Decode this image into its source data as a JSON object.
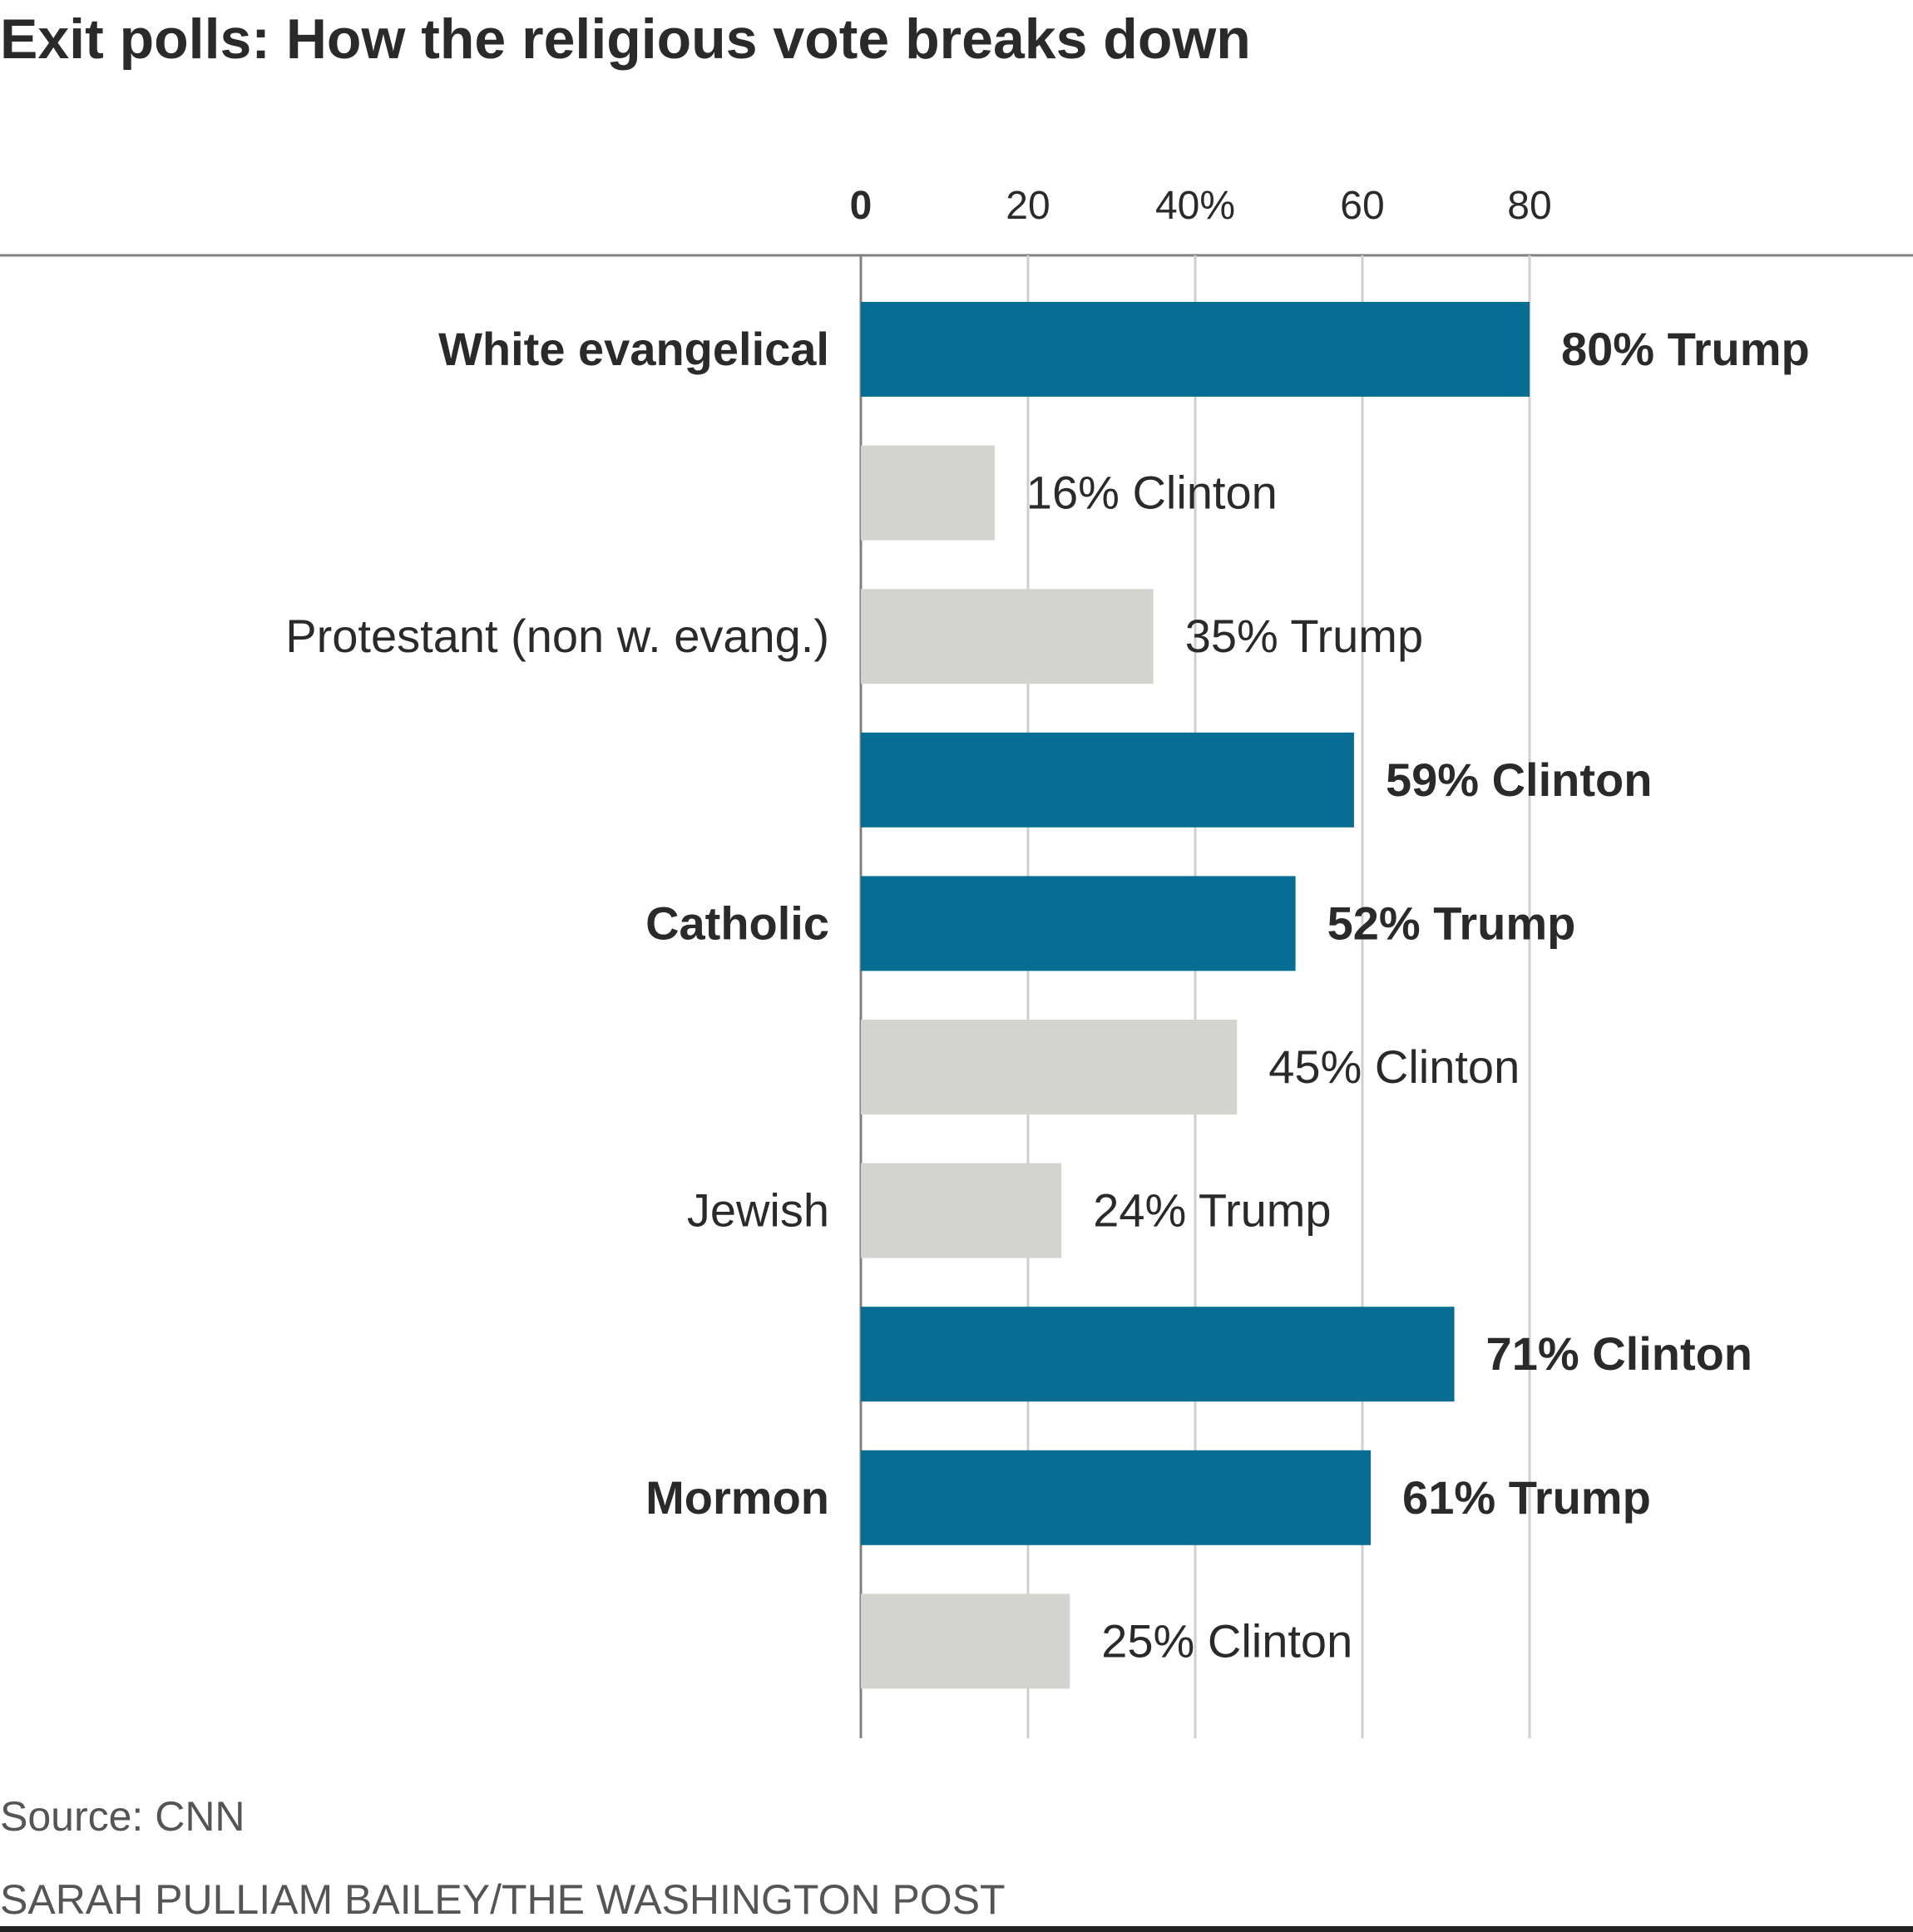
{
  "title": "Exit polls: How the religious vote breaks down",
  "source": "Source: CNN",
  "credit": "SARAH PULLIAM BAILEY/THE WASHINGTON POST",
  "colors": {
    "highlight": "#066e93",
    "muted": "#d3d3cf",
    "grid": "#cfcfcf",
    "axis": "#808080",
    "text": "#2a2a2a"
  },
  "chart_data": {
    "type": "bar",
    "orientation": "horizontal",
    "xlim": [
      0,
      100
    ],
    "xticks": [
      {
        "value": 0,
        "label": "0"
      },
      {
        "value": 20,
        "label": "20"
      },
      {
        "value": 40,
        "label": "40%"
      },
      {
        "value": 60,
        "label": "60"
      },
      {
        "value": 80,
        "label": "80"
      }
    ],
    "grid": true,
    "groups": [
      {
        "label": "White evangelical",
        "bold": true,
        "bars": [
          {
            "value": 80,
            "label": "80% Trump",
            "highlight": true
          },
          {
            "value": 16,
            "label": "16% Clinton",
            "highlight": false
          }
        ]
      },
      {
        "label": "Protestant (non w. evang.)",
        "bold": false,
        "bars": [
          {
            "value": 35,
            "label": "35% Trump",
            "highlight": false
          },
          {
            "value": 59,
            "label": "59% Clinton",
            "highlight": true
          }
        ]
      },
      {
        "label": "Catholic",
        "bold": true,
        "bars": [
          {
            "value": 52,
            "label": "52% Trump",
            "highlight": true
          },
          {
            "value": 45,
            "label": "45% Clinton",
            "highlight": false
          }
        ]
      },
      {
        "label": "Jewish",
        "bold": false,
        "bars": [
          {
            "value": 24,
            "label": "24% Trump",
            "highlight": false
          },
          {
            "value": 71,
            "label": "71% Clinton",
            "highlight": true
          }
        ]
      },
      {
        "label": "Mormon",
        "bold": true,
        "bars": [
          {
            "value": 61,
            "label": "61% Trump",
            "highlight": true
          },
          {
            "value": 25,
            "label": "25% Clinton",
            "highlight": false
          }
        ]
      }
    ]
  }
}
